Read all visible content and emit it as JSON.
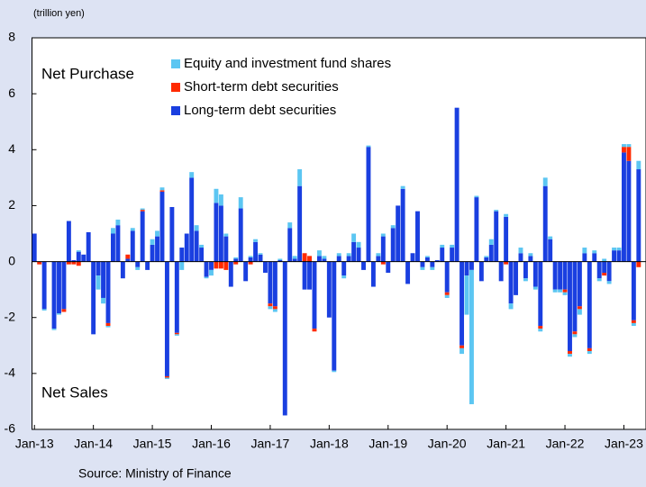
{
  "chart_data": {
    "type": "bar",
    "stacked": true,
    "y_axis_label": "(trillion yen)",
    "annotations": [
      "Net Purchase",
      "Net Sales"
    ],
    "source": "Source: Ministry of Finance",
    "categories": [
      "Jan-13",
      null,
      null,
      null,
      null,
      null,
      null,
      null,
      null,
      null,
      null,
      null,
      "Jan-14",
      null,
      null,
      null,
      null,
      null,
      null,
      null,
      null,
      null,
      null,
      null,
      "Jan-15",
      null,
      null,
      null,
      null,
      null,
      null,
      null,
      null,
      null,
      null,
      null,
      "Jan-16",
      null,
      null,
      null,
      null,
      null,
      null,
      null,
      null,
      null,
      null,
      null,
      "Jan-17",
      null,
      null,
      null,
      null,
      null,
      null,
      null,
      null,
      null,
      null,
      null,
      "Jan-18",
      null,
      null,
      null,
      null,
      null,
      null,
      null,
      null,
      null,
      null,
      null,
      "Jan-19",
      null,
      null,
      null,
      null,
      null,
      null,
      null,
      null,
      null,
      null,
      null,
      "Jan-20",
      null,
      null,
      null,
      null,
      null,
      null,
      null,
      null,
      null,
      null,
      null,
      "Jan-21",
      null,
      null,
      null,
      null,
      null,
      null,
      null,
      null,
      null,
      null,
      null,
      "Jan-22",
      null,
      null,
      null,
      null,
      null,
      null,
      null,
      null,
      null,
      null,
      null,
      "Jan-23",
      null,
      null,
      null
    ],
    "series": [
      {
        "name": "Equity and investment fund shares",
        "color": "#5cc6f2",
        "values": [
          0,
          0,
          -0.05,
          0,
          -0.05,
          -0.05,
          0,
          0,
          0,
          0.05,
          0,
          0,
          0,
          -0.5,
          -0.2,
          -0.05,
          0.2,
          0.2,
          0,
          0,
          0.1,
          -0.1,
          0.05,
          0,
          0.2,
          0.2,
          0.1,
          -0.05,
          0,
          -0.05,
          -0.3,
          0,
          0.2,
          0.2,
          0.1,
          -0.05,
          -0.2,
          0.5,
          0.4,
          0.1,
          0,
          0.05,
          0.4,
          0,
          0.05,
          0.1,
          0.05,
          0,
          -0.1,
          -0.1,
          0.05,
          0,
          0.2,
          0.1,
          0.6,
          0,
          0,
          0,
          0.2,
          0.1,
          0,
          -0.05,
          0.1,
          -0.1,
          0.1,
          0.3,
          0.2,
          0,
          0.05,
          0,
          0.1,
          0.1,
          0,
          0.1,
          0,
          0.1,
          0,
          0,
          0,
          -0.1,
          0.05,
          -0.1,
          0,
          0.1,
          -0.1,
          0.1,
          0,
          -0.2,
          -1.4,
          -4.8,
          0.05,
          0,
          0.05,
          0.2,
          0.05,
          0,
          0.1,
          -0.2,
          0,
          0.2,
          -0.1,
          0.1,
          -0.1,
          -0.1,
          0.3,
          0.1,
          -0.1,
          -0.1,
          -0.1,
          -0.1,
          -0.1,
          -0.2,
          0.2,
          -0.1,
          0.1,
          -0.1,
          0.1,
          -0.1,
          0.1,
          0.1,
          0.1,
          0.1,
          -0.1,
          0.3
        ]
      },
      {
        "name": "Short-term debt securities",
        "color": "#ff2a00",
        "values": [
          0,
          -0.1,
          0,
          0,
          0,
          0,
          -0.1,
          -0.1,
          -0.1,
          -0.15,
          0,
          0,
          0,
          0,
          0,
          -0.1,
          0,
          0,
          0,
          0.15,
          0,
          0,
          0.05,
          0,
          0,
          0,
          0.05,
          -0.05,
          0,
          -0.05,
          0,
          0,
          0,
          0,
          0,
          0,
          0,
          -0.25,
          -0.25,
          -0.3,
          0,
          -0.1,
          0,
          0,
          -0.1,
          0,
          0,
          0,
          -0.1,
          -0.1,
          0,
          0,
          0,
          0,
          0,
          0.3,
          0.2,
          -0.1,
          0,
          0,
          0,
          0,
          0,
          0,
          0,
          0,
          0,
          0,
          0,
          0,
          0,
          -0.1,
          0,
          0,
          0,
          0,
          0,
          0,
          0,
          0,
          0,
          0,
          0,
          0,
          -0.1,
          0,
          0,
          -0.1,
          0,
          0,
          0,
          0,
          0,
          0,
          0,
          0,
          -0.1,
          0,
          0,
          0,
          0,
          0,
          0,
          -0.1,
          0,
          0,
          0,
          0,
          -0.1,
          -0.1,
          -0.1,
          -0.1,
          0,
          -0.1,
          0,
          0,
          -0.1,
          0,
          0,
          0,
          0.2,
          0.5,
          -0.1,
          -0.2
        ]
      },
      {
        "name": "Long-term debt securities",
        "color": "#1a3fe0",
        "values": [
          1.0,
          0,
          -1.7,
          0,
          -2.4,
          -1.85,
          -1.7,
          1.45,
          0.05,
          0.35,
          0.25,
          1.05,
          -2.6,
          -0.5,
          -1.3,
          -2.2,
          1.0,
          1.3,
          -0.6,
          0.1,
          1.1,
          -0.2,
          1.8,
          -0.3,
          0.6,
          0.9,
          2.5,
          -4.1,
          1.95,
          -2.55,
          0.5,
          1.0,
          3.0,
          1.1,
          0.5,
          -0.55,
          -0.3,
          2.1,
          2.0,
          0.9,
          -0.9,
          0.1,
          1.9,
          -0.7,
          0.15,
          0.7,
          0.25,
          -0.4,
          -1.5,
          -1.6,
          0.05,
          -5.5,
          1.2,
          0.1,
          2.7,
          -1.0,
          -1.0,
          -2.4,
          0.2,
          0.1,
          -2.0,
          -3.9,
          0.2,
          -0.5,
          0.2,
          0.7,
          0.5,
          -0.3,
          4.1,
          -0.9,
          0.2,
          0.9,
          -0.4,
          1.2,
          2.0,
          2.6,
          -0.8,
          0.3,
          1.8,
          -0.2,
          0.15,
          -0.2,
          0.05,
          0.5,
          -1.1,
          0.5,
          5.5,
          -3.0,
          -0.5,
          -0.3,
          2.3,
          -0.7,
          0.15,
          0.6,
          1.8,
          -0.7,
          1.6,
          -1.5,
          -1.2,
          0.3,
          -0.6,
          0.2,
          -0.9,
          -2.3,
          2.7,
          0.8,
          -1.0,
          -1.0,
          -1.0,
          -3.2,
          -2.5,
          -1.6,
          0.3,
          -3.1,
          0.3,
          -0.6,
          -0.4,
          -0.7,
          0.4,
          0.4,
          3.9,
          3.6,
          -2.1,
          3.3
        ]
      }
    ],
    "ylim": [
      -6,
      8
    ],
    "yticks": [
      -6,
      -4,
      -2,
      0,
      2,
      4,
      6,
      8
    ],
    "grid": false,
    "legend": "top"
  }
}
